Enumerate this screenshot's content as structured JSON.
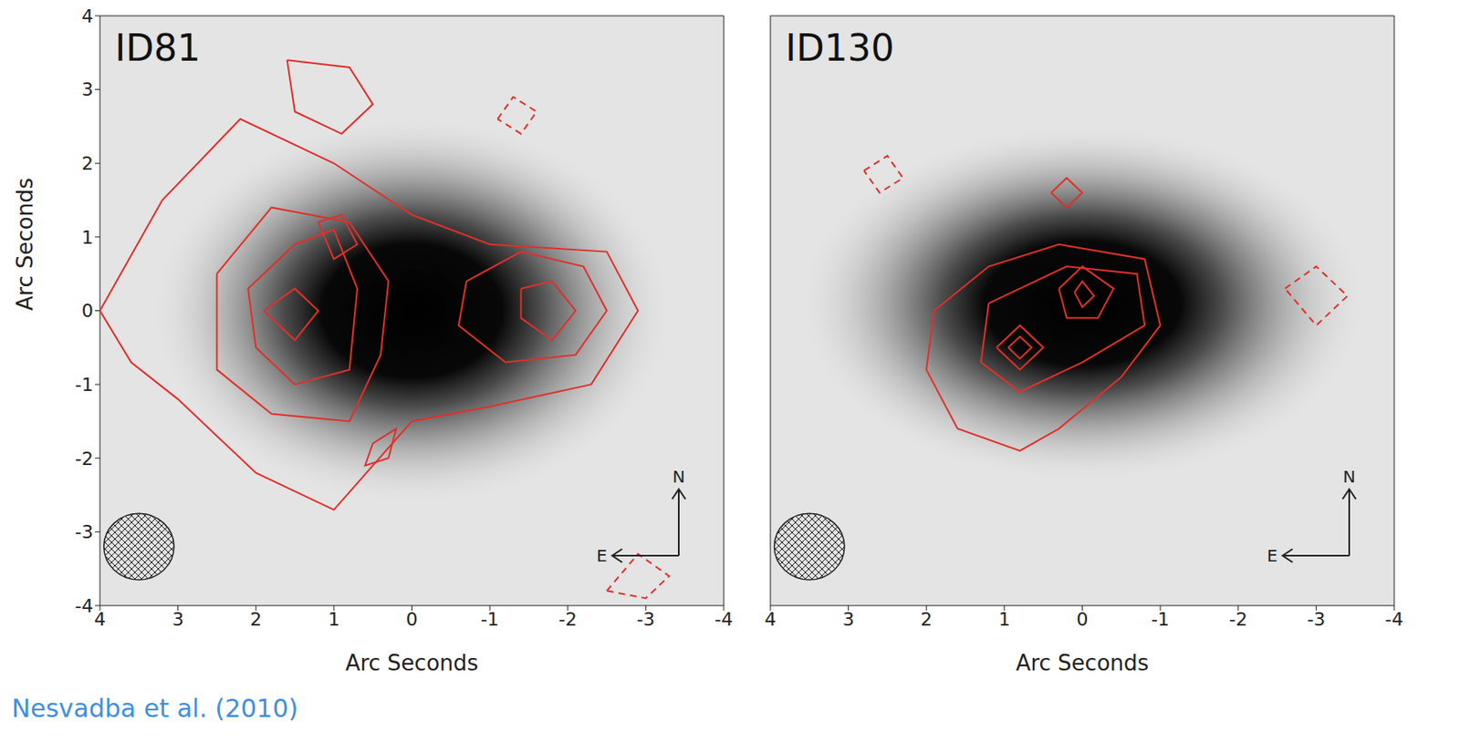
{
  "caption": "Nesvadba et al. (2010)",
  "chart_data": [
    {
      "type": "contour",
      "title": "ID81",
      "x_label": "Arc Seconds",
      "y_label": "Arc Seconds",
      "xlim": [
        4,
        -4
      ],
      "ylim": [
        -4,
        4
      ],
      "xticks": [
        4,
        3,
        2,
        1,
        0,
        -1,
        -2,
        -3,
        -4
      ],
      "yticks": [
        -4,
        -3,
        -2,
        -1,
        0,
        1,
        2,
        3,
        4
      ],
      "color": "#e0302a",
      "compass": {
        "north": "N",
        "east": "E"
      },
      "image": {
        "x": 0,
        "y": 0,
        "rx": 3.3,
        "ry": 2.6
      },
      "beam": {
        "x": 3.5,
        "y": -3.2,
        "r": 0.45
      },
      "contours": [
        {
          "line_style": "solid",
          "values": [
            [
              4,
              0
            ],
            [
              3.2,
              1.5
            ],
            [
              2.2,
              2.6
            ],
            [
              1,
              2
            ],
            [
              0,
              1.3
            ],
            [
              -1,
              0.9
            ],
            [
              -2.5,
              0.8
            ],
            [
              -2.9,
              0
            ],
            [
              -2.3,
              -1
            ],
            [
              -1,
              -1.3
            ],
            [
              0,
              -1.5
            ],
            [
              1,
              -2.7
            ],
            [
              2,
              -2.2
            ],
            [
              3,
              -1.2
            ],
            [
              3.6,
              -0.7
            ]
          ]
        },
        {
          "line_style": "solid",
          "values": [
            [
              2.5,
              0.5
            ],
            [
              1.8,
              1.4
            ],
            [
              0.8,
              1.2
            ],
            [
              0.3,
              0.4
            ],
            [
              0.4,
              -0.6
            ],
            [
              0.8,
              -1.5
            ],
            [
              1.8,
              -1.4
            ],
            [
              2.5,
              -0.8
            ]
          ]
        },
        {
          "line_style": "solid",
          "values": [
            [
              2.1,
              0.3
            ],
            [
              1.5,
              0.9
            ],
            [
              1,
              1.1
            ],
            [
              0.7,
              0.3
            ],
            [
              0.8,
              -0.8
            ],
            [
              1.5,
              -1
            ],
            [
              2,
              -0.5
            ]
          ]
        },
        {
          "line_style": "solid",
          "values": [
            [
              1.9,
              0
            ],
            [
              1.5,
              0.3
            ],
            [
              1.2,
              0
            ],
            [
              1.5,
              -0.4
            ]
          ]
        },
        {
          "line_style": "solid",
          "values": [
            [
              1.2,
              1.2
            ],
            [
              0.9,
              1.3
            ],
            [
              0.7,
              0.9
            ],
            [
              1,
              0.7
            ]
          ]
        },
        {
          "line_style": "solid",
          "values": [
            [
              -0.7,
              0.4
            ],
            [
              -1.4,
              0.8
            ],
            [
              -2.2,
              0.6
            ],
            [
              -2.5,
              0
            ],
            [
              -2.1,
              -0.6
            ],
            [
              -1.2,
              -0.7
            ],
            [
              -0.6,
              -0.2
            ]
          ]
        },
        {
          "line_style": "solid",
          "values": [
            [
              -1.4,
              0.3
            ],
            [
              -1.8,
              0.4
            ],
            [
              -2.1,
              0
            ],
            [
              -1.8,
              -0.4
            ],
            [
              -1.4,
              -0.1
            ]
          ]
        },
        {
          "line_style": "solid",
          "values": [
            [
              1.6,
              3.4
            ],
            [
              0.8,
              3.3
            ],
            [
              0.5,
              2.8
            ],
            [
              0.9,
              2.4
            ],
            [
              1.5,
              2.7
            ]
          ]
        },
        {
          "line_style": "solid",
          "values": [
            [
              0.5,
              -1.8
            ],
            [
              0.2,
              -1.6
            ],
            [
              0.3,
              -2
            ],
            [
              0.6,
              -2.1
            ]
          ]
        },
        {
          "line_style": "dashed",
          "values": [
            [
              -2.5,
              -3.8
            ],
            [
              -2.9,
              -3.3
            ],
            [
              -3.3,
              -3.6
            ],
            [
              -3,
              -3.9
            ]
          ]
        },
        {
          "line_style": "dashed",
          "values": [
            [
              -1.1,
              2.6
            ],
            [
              -1.3,
              2.9
            ],
            [
              -1.6,
              2.7
            ],
            [
              -1.4,
              2.4
            ]
          ]
        }
      ]
    },
    {
      "type": "contour",
      "title": "ID130",
      "x_label": "Arc Seconds",
      "xlim": [
        4,
        -4
      ],
      "ylim": [
        -4,
        4
      ],
      "xticks": [
        4,
        3,
        2,
        1,
        0,
        -1,
        -2,
        -3,
        -4
      ],
      "yticks": [
        -4,
        -3,
        -2,
        -1,
        0,
        1,
        2,
        3,
        4
      ],
      "tick_labels": "x",
      "color": "#e0302a",
      "compass": {
        "north": "N",
        "east": "E"
      },
      "image": {
        "x": 0,
        "y": 0.1,
        "rx": 3.6,
        "ry": 2.4
      },
      "beam": {
        "x": 3.5,
        "y": -3.2,
        "r": 0.45
      },
      "contours": [
        {
          "line_style": "solid",
          "values": [
            [
              1.9,
              0
            ],
            [
              1.2,
              0.6
            ],
            [
              0.3,
              0.9
            ],
            [
              -0.8,
              0.7
            ],
            [
              -1,
              -0.2
            ],
            [
              -0.5,
              -0.9
            ],
            [
              0.3,
              -1.6
            ],
            [
              0.8,
              -1.9
            ],
            [
              1.6,
              -1.6
            ],
            [
              2,
              -0.8
            ]
          ]
        },
        {
          "line_style": "solid",
          "values": [
            [
              1.2,
              0.1
            ],
            [
              0.2,
              0.6
            ],
            [
              -0.7,
              0.5
            ],
            [
              -0.8,
              -0.2
            ],
            [
              0,
              -0.7
            ],
            [
              0.8,
              -1.1
            ],
            [
              1.3,
              -0.7
            ]
          ]
        },
        {
          "line_style": "solid",
          "values": [
            [
              1.1,
              -0.5
            ],
            [
              0.8,
              -0.2
            ],
            [
              0.5,
              -0.5
            ],
            [
              0.8,
              -0.8
            ]
          ]
        },
        {
          "line_style": "solid",
          "values": [
            [
              0.95,
              -0.5
            ],
            [
              0.8,
              -0.35
            ],
            [
              0.65,
              -0.5
            ],
            [
              0.8,
              -0.65
            ]
          ]
        },
        {
          "line_style": "solid",
          "values": [
            [
              0.3,
              0.3
            ],
            [
              0,
              0.6
            ],
            [
              -0.4,
              0.3
            ],
            [
              -0.2,
              -0.1
            ],
            [
              0.2,
              -0.1
            ]
          ]
        },
        {
          "line_style": "solid",
          "values": [
            [
              0.1,
              0.25
            ],
            [
              0,
              0.4
            ],
            [
              -0.15,
              0.2
            ],
            [
              0,
              0.05
            ]
          ]
        },
        {
          "line_style": "solid",
          "values": [
            [
              0.4,
              1.6
            ],
            [
              0.2,
              1.8
            ],
            [
              0,
              1.6
            ],
            [
              0.2,
              1.4
            ]
          ]
        },
        {
          "line_style": "dashed",
          "values": [
            [
              -2.6,
              0.3
            ],
            [
              -3,
              0.6
            ],
            [
              -3.4,
              0.2
            ],
            [
              -3,
              -0.2
            ]
          ]
        },
        {
          "line_style": "dashed",
          "values": [
            [
              2.8,
              1.9
            ],
            [
              2.5,
              2.1
            ],
            [
              2.3,
              1.8
            ],
            [
              2.6,
              1.6
            ]
          ]
        }
      ]
    }
  ]
}
